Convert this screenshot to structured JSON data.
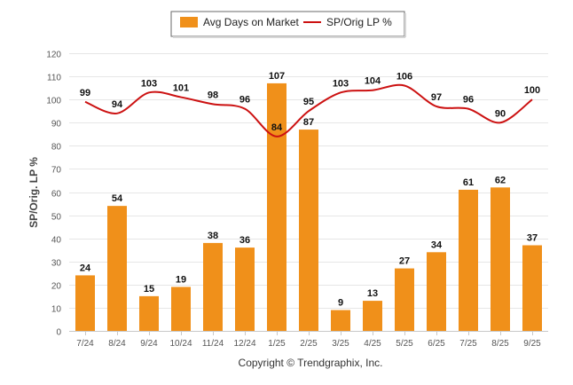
{
  "chart_data": {
    "type": "bar",
    "categories": [
      "7/24",
      "8/24",
      "9/24",
      "10/24",
      "11/24",
      "12/24",
      "1/25",
      "2/25",
      "3/25",
      "4/25",
      "5/25",
      "6/25",
      "7/25",
      "8/25",
      "9/25"
    ],
    "series": [
      {
        "name": "Avg Days on Market",
        "type": "bar",
        "color": "#f0901a",
        "values": [
          24,
          54,
          15,
          19,
          38,
          36,
          107,
          87,
          9,
          13,
          27,
          34,
          61,
          62,
          37
        ]
      },
      {
        "name": "SP/Orig LP %",
        "type": "line",
        "color": "#cc1111",
        "values": [
          99,
          94,
          103,
          101,
          98,
          96,
          84,
          95,
          103,
          104,
          106,
          97,
          96,
          90,
          100
        ]
      }
    ],
    "ylabel": "SP/Orig. LP %",
    "xlabel": "",
    "ylim": [
      0,
      120
    ],
    "yticks": [
      0,
      10,
      20,
      30,
      40,
      50,
      60,
      70,
      80,
      90,
      100,
      110,
      120
    ],
    "grid": true,
    "legend": "top-center"
  },
  "footer": {
    "copyright": "Copyright © Trendgraphix, Inc."
  }
}
